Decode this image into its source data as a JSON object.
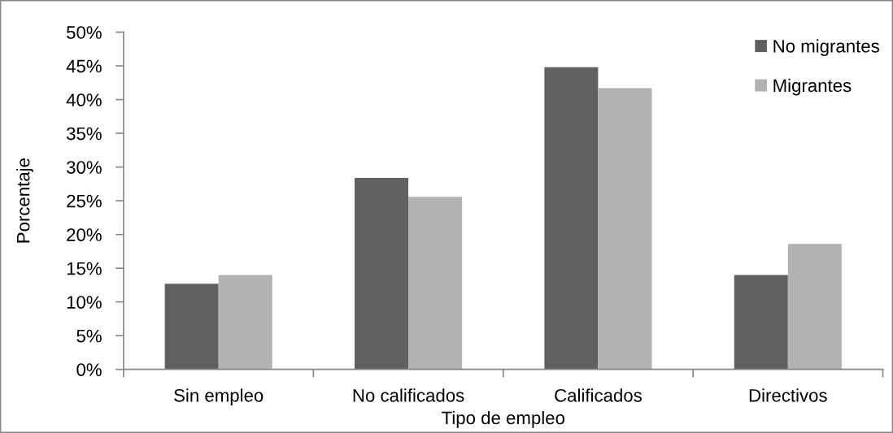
{
  "chart_data": {
    "type": "bar",
    "xlabel": "Tipo de empleo",
    "ylabel": "Porcentaje",
    "categories": [
      "Sin empleo",
      "No calificados",
      "Calificados",
      "Directivos"
    ],
    "series": [
      {
        "name": "No migrantes",
        "color": "#606060",
        "values": [
          12.7,
          28.4,
          44.8,
          14.0
        ]
      },
      {
        "name": "Migrantes",
        "color": "#b2b2b2",
        "values": [
          14.0,
          25.6,
          41.7,
          18.6
        ]
      }
    ],
    "ylim": [
      0,
      50
    ],
    "yticks": [
      {
        "value": 0,
        "label": "0%"
      },
      {
        "value": 5,
        "label": "5%"
      },
      {
        "value": 10,
        "label": "10%"
      },
      {
        "value": 15,
        "label": "15%"
      },
      {
        "value": 20,
        "label": "20%"
      },
      {
        "value": 25,
        "label": "25%"
      },
      {
        "value": 30,
        "label": "30%"
      },
      {
        "value": 35,
        "label": "35%"
      },
      {
        "value": 40,
        "label": "40%"
      },
      {
        "value": 45,
        "label": "45%"
      },
      {
        "value": 50,
        "label": "50%"
      }
    ],
    "legend": "top right"
  }
}
